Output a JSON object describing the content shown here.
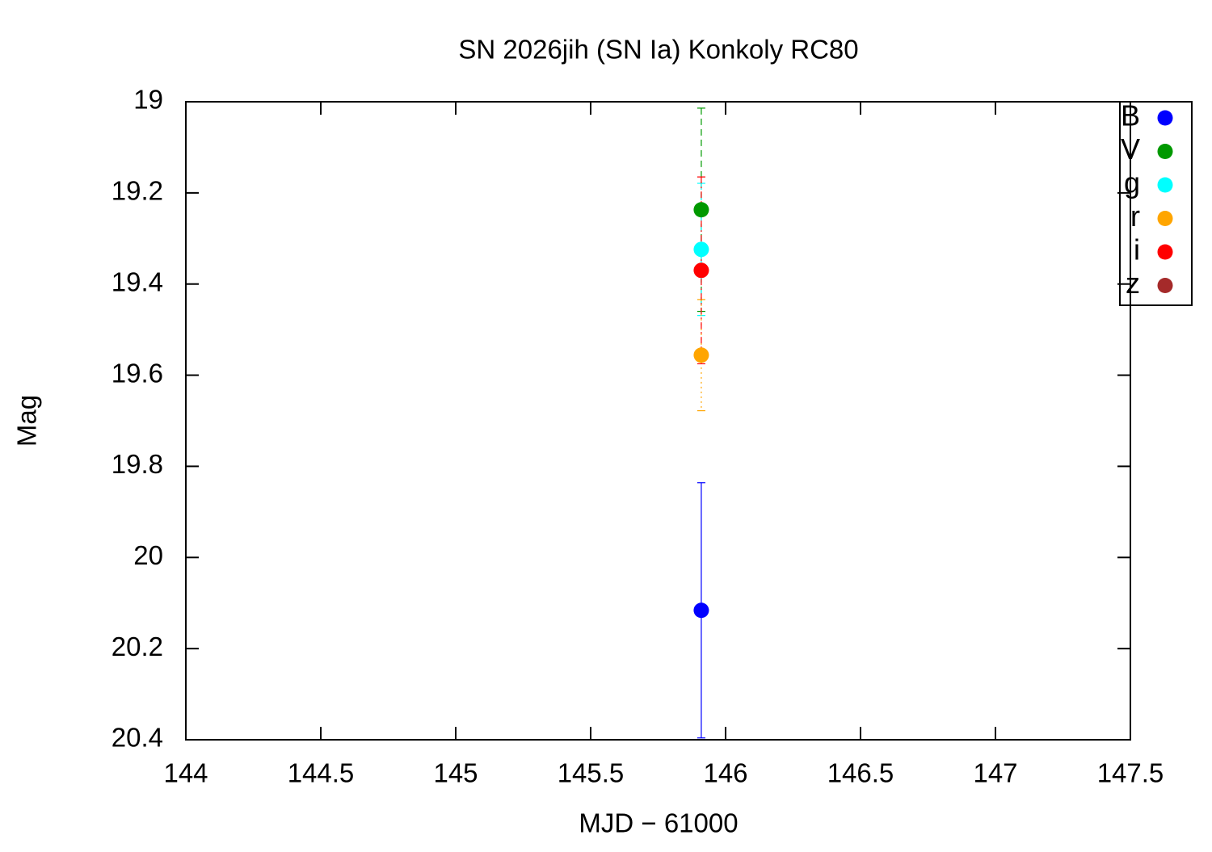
{
  "chart_data": {
    "type": "scatter",
    "title": "SN 2026jih (SN Ia) Konkoly RC80",
    "x_label": "MJD − 61000",
    "y_label": "Mag",
    "x": [
      145.91
    ],
    "series": [
      {
        "name": "B",
        "color": "#0000ff",
        "line_style": "solid",
        "values": [
          20.116
        ],
        "errors": [
          0.28
        ]
      },
      {
        "name": "V",
        "color": "#009900",
        "line_style": "dashed",
        "values": [
          19.237
        ],
        "errors": [
          0.223
        ]
      },
      {
        "name": "g",
        "color": "#00ffff",
        "line_style": "dashed",
        "values": [
          19.324
        ],
        "errors": [
          0.145
        ]
      },
      {
        "name": "r",
        "color": "#ffa500",
        "line_style": "dotted",
        "values": [
          19.556
        ],
        "errors": [
          0.122
        ]
      },
      {
        "name": "i",
        "color": "#ff0000",
        "line_style": "dashdot",
        "values": [
          19.37
        ],
        "errors": [
          0.205
        ]
      },
      {
        "name": "z",
        "color": "#a52a2a",
        "line_style": "solid",
        "values": [
          null
        ],
        "errors": [
          null
        ]
      }
    ],
    "xlim": [
      144,
      147.5
    ],
    "xticks": [
      144,
      144.5,
      145,
      145.5,
      146,
      146.5,
      147,
      147.5
    ],
    "ylim": [
      19,
      20.4
    ],
    "y_inverted": true,
    "yticks": [
      19,
      19.2,
      19.4,
      19.6,
      19.8,
      20,
      20.2,
      20.4
    ],
    "legend": "top-right"
  }
}
